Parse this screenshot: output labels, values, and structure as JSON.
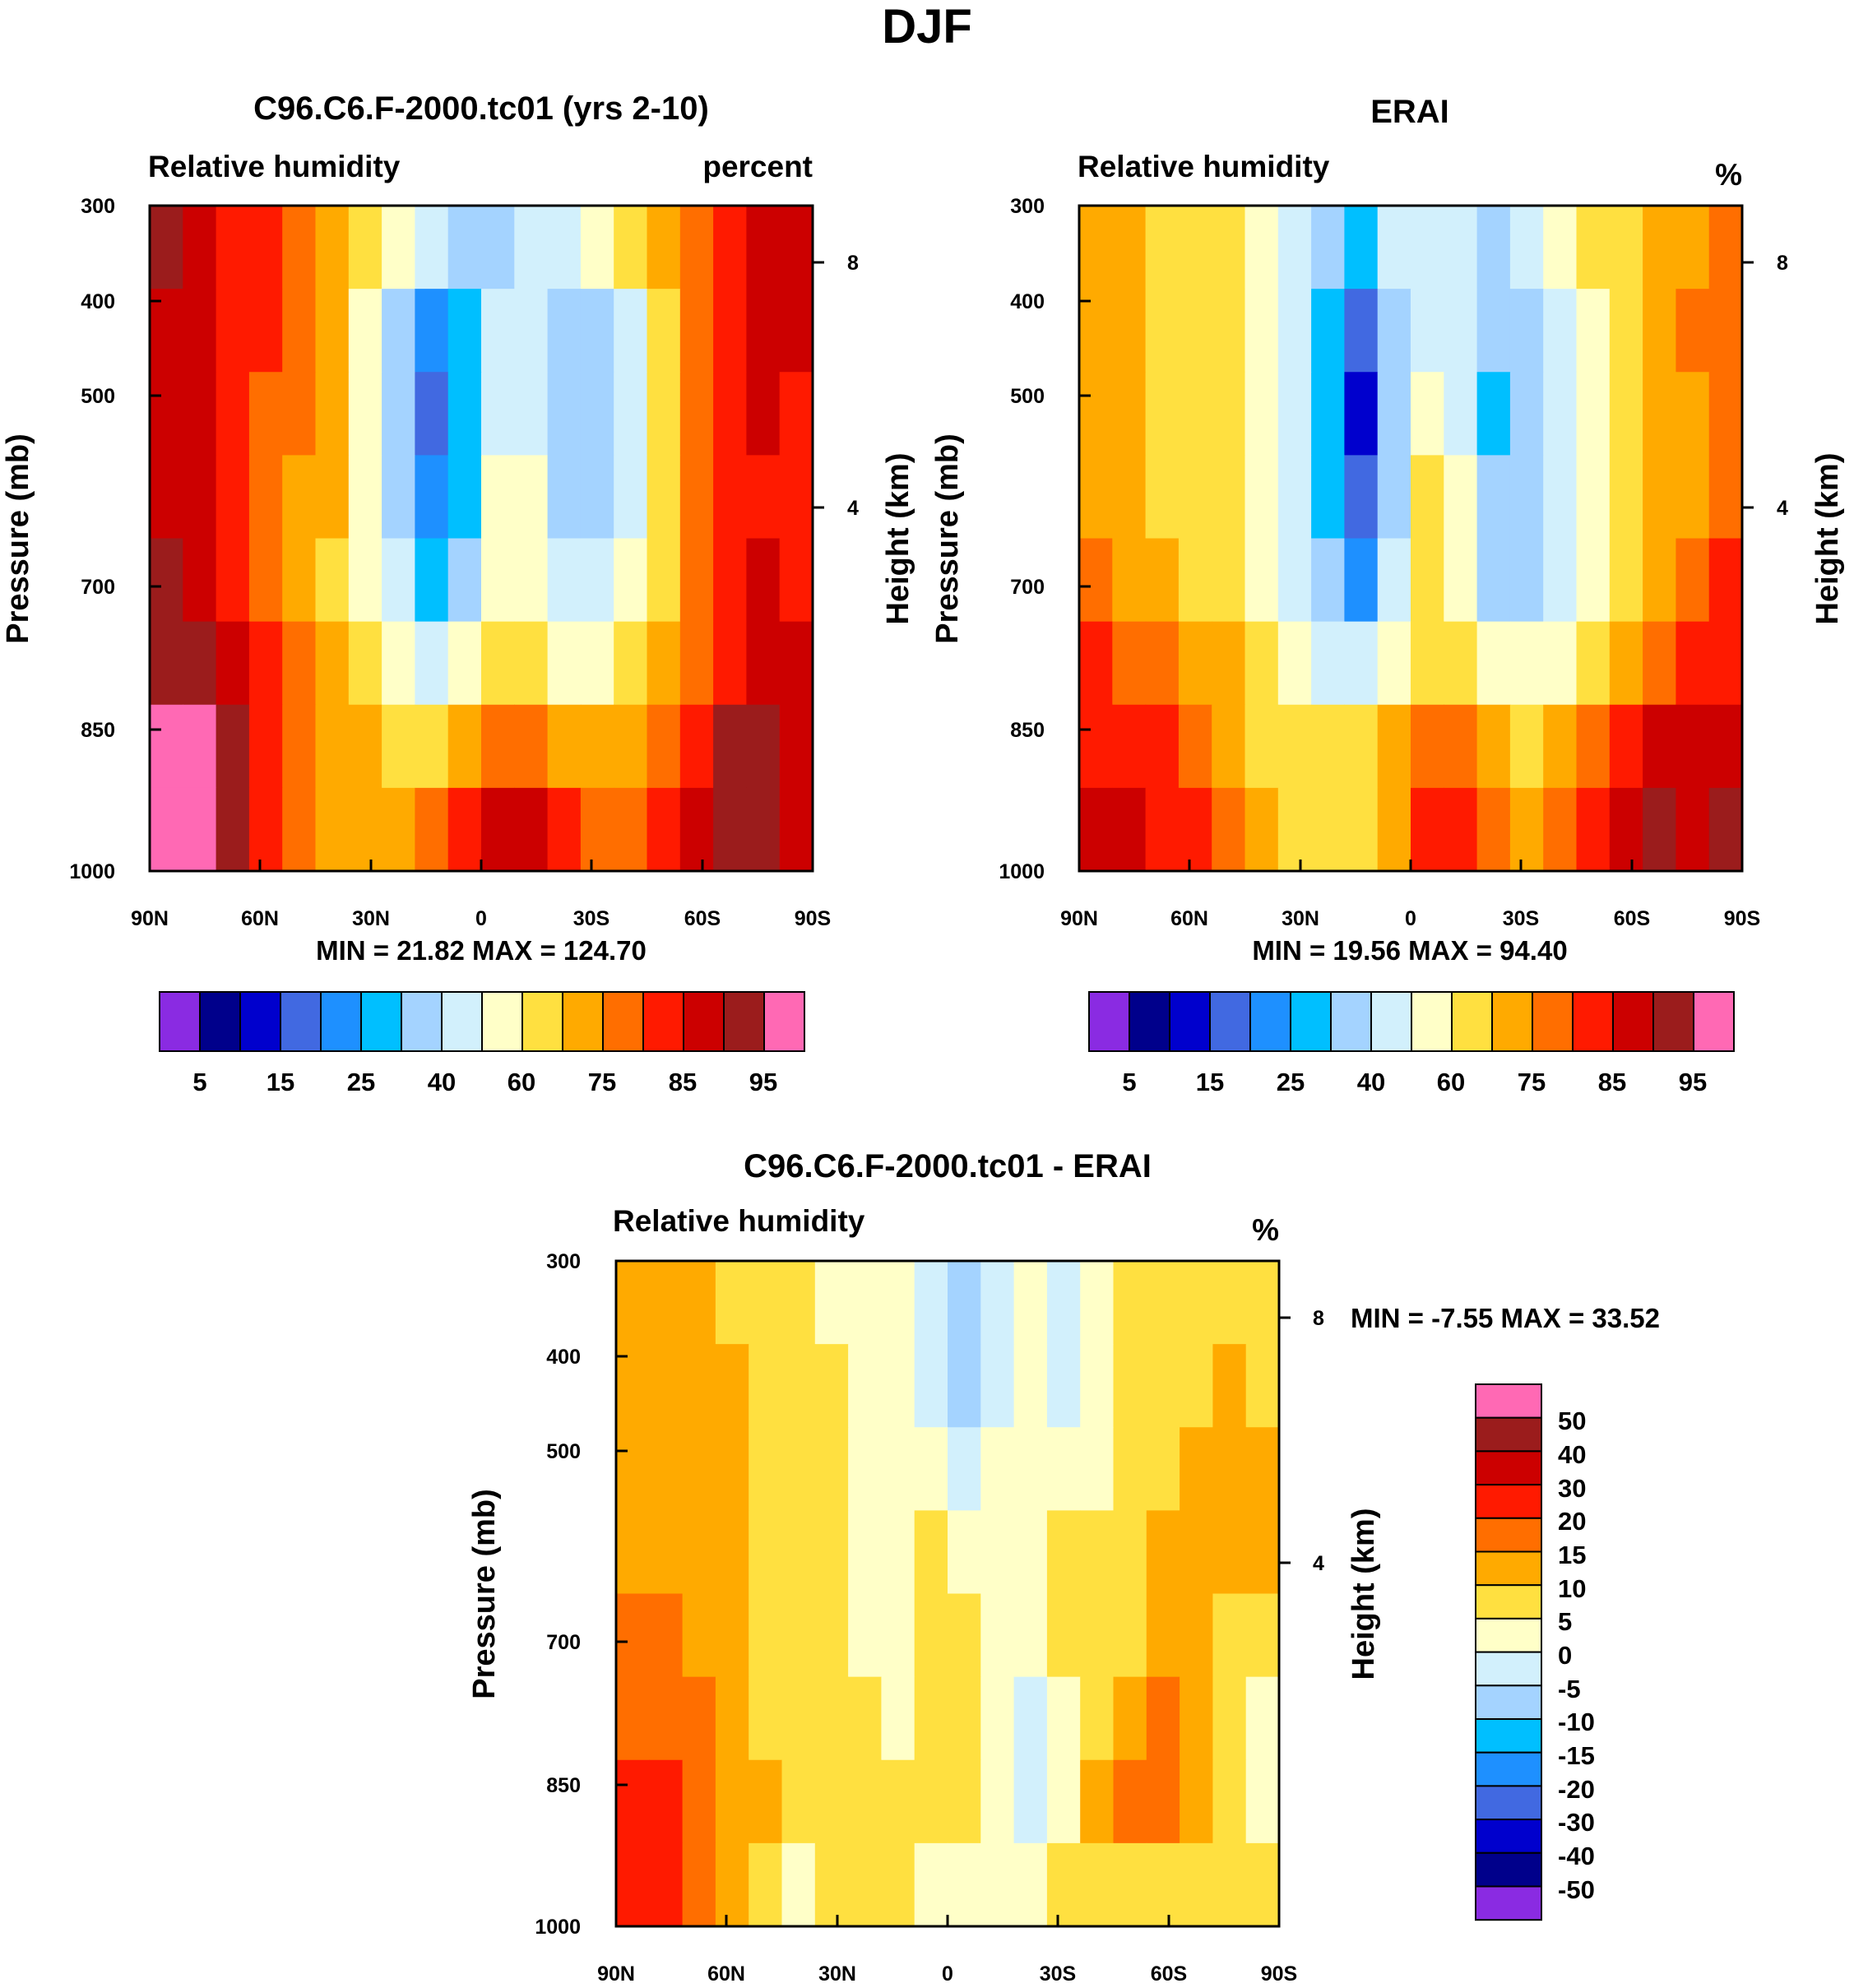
{
  "page": {
    "title": "DJF"
  },
  "colors": {
    "rh_levels": [
      "#8a2be2",
      "#00008b",
      "#0000cd",
      "#4169e1",
      "#1e90ff",
      "#00bfff",
      "#a4d3ff",
      "#d2f0fc",
      "#ffffc8",
      "#ffe040",
      "#ffaa00",
      "#ff6e00",
      "#ff1a00",
      "#cc0000",
      "#9b1c1c",
      "#ff69b4"
    ],
    "diff_levels": [
      "#8a2be2",
      "#00008b",
      "#0000cd",
      "#4169e1",
      "#1e90ff",
      "#00bfff",
      "#a4d3ff",
      "#d2f0fc",
      "#ffffc8",
      "#ffe040",
      "#ffaa00",
      "#ff6e00",
      "#ff1a00",
      "#cc0000",
      "#9b1c1c",
      "#ff69b4"
    ]
  },
  "chart_data": [
    {
      "type": "heatmap",
      "id": "model",
      "title": "C96.C6.F-2000.tc01 (yrs 2-10)",
      "left_label": "Relative humidity",
      "right_label": "percent",
      "ylabel": "Pressure (mb)",
      "y2label": "Height (km)",
      "x_ticks": [
        "90N",
        "60N",
        "30N",
        "0",
        "30S",
        "60S",
        "90S"
      ],
      "y_ticks": [
        "300",
        "400",
        "500",
        "700",
        "850",
        "1000"
      ],
      "y2_ticks": [
        "8",
        "4"
      ],
      "stats": "MIN =  21.82  MAX = 124.70",
      "colorbar_labels": [
        "5",
        "15",
        "25",
        "40",
        "60",
        "75",
        "85",
        "95"
      ],
      "ylim": [
        1000,
        300
      ],
      "xlim": [
        "90N",
        "90S"
      ],
      "field_bins": [
        [
          14,
          13,
          12,
          12,
          11,
          10,
          9,
          8,
          7,
          6,
          6,
          7,
          7,
          8,
          9,
          10,
          11,
          12,
          13,
          13
        ],
        [
          13,
          13,
          12,
          12,
          11,
          10,
          8,
          6,
          4,
          5,
          7,
          7,
          6,
          6,
          7,
          9,
          11,
          12,
          13,
          13
        ],
        [
          13,
          13,
          12,
          11,
          11,
          10,
          8,
          6,
          3,
          5,
          7,
          7,
          6,
          6,
          7,
          9,
          11,
          12,
          13,
          12
        ],
        [
          13,
          13,
          12,
          11,
          10,
          10,
          8,
          6,
          4,
          5,
          8,
          8,
          6,
          6,
          7,
          9,
          11,
          12,
          12,
          12
        ],
        [
          14,
          13,
          12,
          11,
          10,
          9,
          8,
          7,
          5,
          6,
          8,
          8,
          7,
          7,
          8,
          9,
          11,
          12,
          13,
          12
        ],
        [
          14,
          14,
          13,
          12,
          11,
          10,
          9,
          8,
          7,
          8,
          9,
          9,
          8,
          8,
          9,
          10,
          11,
          12,
          13,
          13
        ],
        [
          15,
          15,
          14,
          12,
          11,
          10,
          10,
          9,
          9,
          10,
          11,
          11,
          10,
          10,
          10,
          11,
          12,
          14,
          14,
          13
        ],
        [
          15,
          15,
          14,
          12,
          11,
          10,
          10,
          10,
          11,
          12,
          13,
          13,
          12,
          11,
          11,
          12,
          13,
          14,
          14,
          13
        ]
      ]
    },
    {
      "type": "heatmap",
      "id": "obs",
      "title": "ERAI",
      "left_label": "Relative humidity",
      "right_label": "%",
      "ylabel": "Pressure (mb)",
      "y2label": "Height (km)",
      "x_ticks": [
        "90N",
        "60N",
        "30N",
        "0",
        "30S",
        "60S",
        "90S"
      ],
      "y_ticks": [
        "300",
        "400",
        "500",
        "700",
        "850",
        "1000"
      ],
      "y2_ticks": [
        "8",
        "4"
      ],
      "stats": "MIN =  19.56  MAX =  94.40",
      "colorbar_labels": [
        "5",
        "15",
        "25",
        "40",
        "60",
        "75",
        "85",
        "95"
      ],
      "ylim": [
        1000,
        300
      ],
      "xlim": [
        "90N",
        "90S"
      ],
      "field_bins": [
        [
          10,
          10,
          9,
          9,
          9,
          8,
          7,
          6,
          5,
          7,
          7,
          7,
          6,
          7,
          8,
          9,
          9,
          10,
          10,
          11
        ],
        [
          10,
          10,
          9,
          9,
          9,
          8,
          7,
          5,
          3,
          6,
          7,
          7,
          6,
          6,
          7,
          8,
          9,
          10,
          11,
          11
        ],
        [
          10,
          10,
          9,
          9,
          9,
          8,
          7,
          5,
          2,
          6,
          8,
          7,
          5,
          6,
          7,
          8,
          9,
          10,
          10,
          11
        ],
        [
          10,
          10,
          9,
          9,
          9,
          8,
          7,
          5,
          3,
          6,
          9,
          8,
          6,
          6,
          7,
          8,
          9,
          10,
          10,
          11
        ],
        [
          11,
          10,
          10,
          9,
          9,
          8,
          7,
          6,
          4,
          7,
          9,
          8,
          6,
          6,
          7,
          8,
          9,
          10,
          11,
          12
        ],
        [
          12,
          11,
          11,
          10,
          10,
          9,
          8,
          7,
          7,
          8,
          9,
          9,
          8,
          8,
          8,
          9,
          10,
          11,
          12,
          12
        ],
        [
          12,
          12,
          12,
          11,
          10,
          9,
          9,
          9,
          9,
          10,
          11,
          11,
          10,
          9,
          10,
          11,
          12,
          13,
          13,
          13
        ],
        [
          13,
          13,
          12,
          12,
          11,
          10,
          9,
          9,
          9,
          10,
          12,
          12,
          11,
          10,
          11,
          12,
          13,
          14,
          13,
          14
        ]
      ]
    },
    {
      "type": "heatmap",
      "id": "diff",
      "title": "C96.C6.F-2000.tc01 - ERAI",
      "left_label": "Relative humidity",
      "right_label": "%",
      "ylabel": "Pressure (mb)",
      "y2label": "Height (km)",
      "x_ticks": [
        "90N",
        "60N",
        "30N",
        "0",
        "30S",
        "60S",
        "90S"
      ],
      "y_ticks": [
        "300",
        "400",
        "500",
        "700",
        "850",
        "1000"
      ],
      "y2_ticks": [
        "8",
        "4"
      ],
      "stats": "MIN =  -7.55  MAX =  33.52",
      "colorbar_labels": [
        "50",
        "40",
        "30",
        "20",
        "15",
        "10",
        "5",
        "0",
        "-5",
        "-10",
        "-15",
        "-20",
        "-30",
        "-40",
        "-50"
      ],
      "ylim": [
        1000,
        300
      ],
      "xlim": [
        "90N",
        "90S"
      ],
      "field_bins": [
        [
          10,
          10,
          10,
          9,
          9,
          9,
          8,
          8,
          8,
          7,
          6,
          7,
          8,
          7,
          8,
          9,
          9,
          9,
          9,
          9
        ],
        [
          10,
          10,
          10,
          10,
          9,
          9,
          9,
          8,
          8,
          7,
          6,
          7,
          8,
          7,
          8,
          9,
          9,
          9,
          10,
          9
        ],
        [
          10,
          10,
          10,
          10,
          9,
          9,
          9,
          8,
          8,
          8,
          7,
          8,
          8,
          8,
          8,
          9,
          9,
          10,
          10,
          10
        ],
        [
          10,
          10,
          10,
          10,
          9,
          9,
          9,
          8,
          8,
          9,
          8,
          8,
          8,
          9,
          9,
          9,
          10,
          10,
          10,
          10
        ],
        [
          11,
          11,
          10,
          10,
          9,
          9,
          9,
          8,
          8,
          9,
          9,
          8,
          8,
          9,
          9,
          9,
          10,
          10,
          9,
          9
        ],
        [
          11,
          11,
          11,
          10,
          9,
          9,
          9,
          9,
          8,
          9,
          9,
          8,
          7,
          8,
          9,
          10,
          11,
          10,
          9,
          8
        ],
        [
          12,
          12,
          11,
          10,
          10,
          9,
          9,
          9,
          9,
          9,
          9,
          8,
          7,
          8,
          10,
          11,
          11,
          10,
          9,
          8
        ],
        [
          12,
          12,
          11,
          10,
          9,
          8,
          9,
          9,
          9,
          8,
          8,
          8,
          8,
          9,
          9,
          9,
          9,
          9,
          9,
          9
        ]
      ]
    }
  ]
}
